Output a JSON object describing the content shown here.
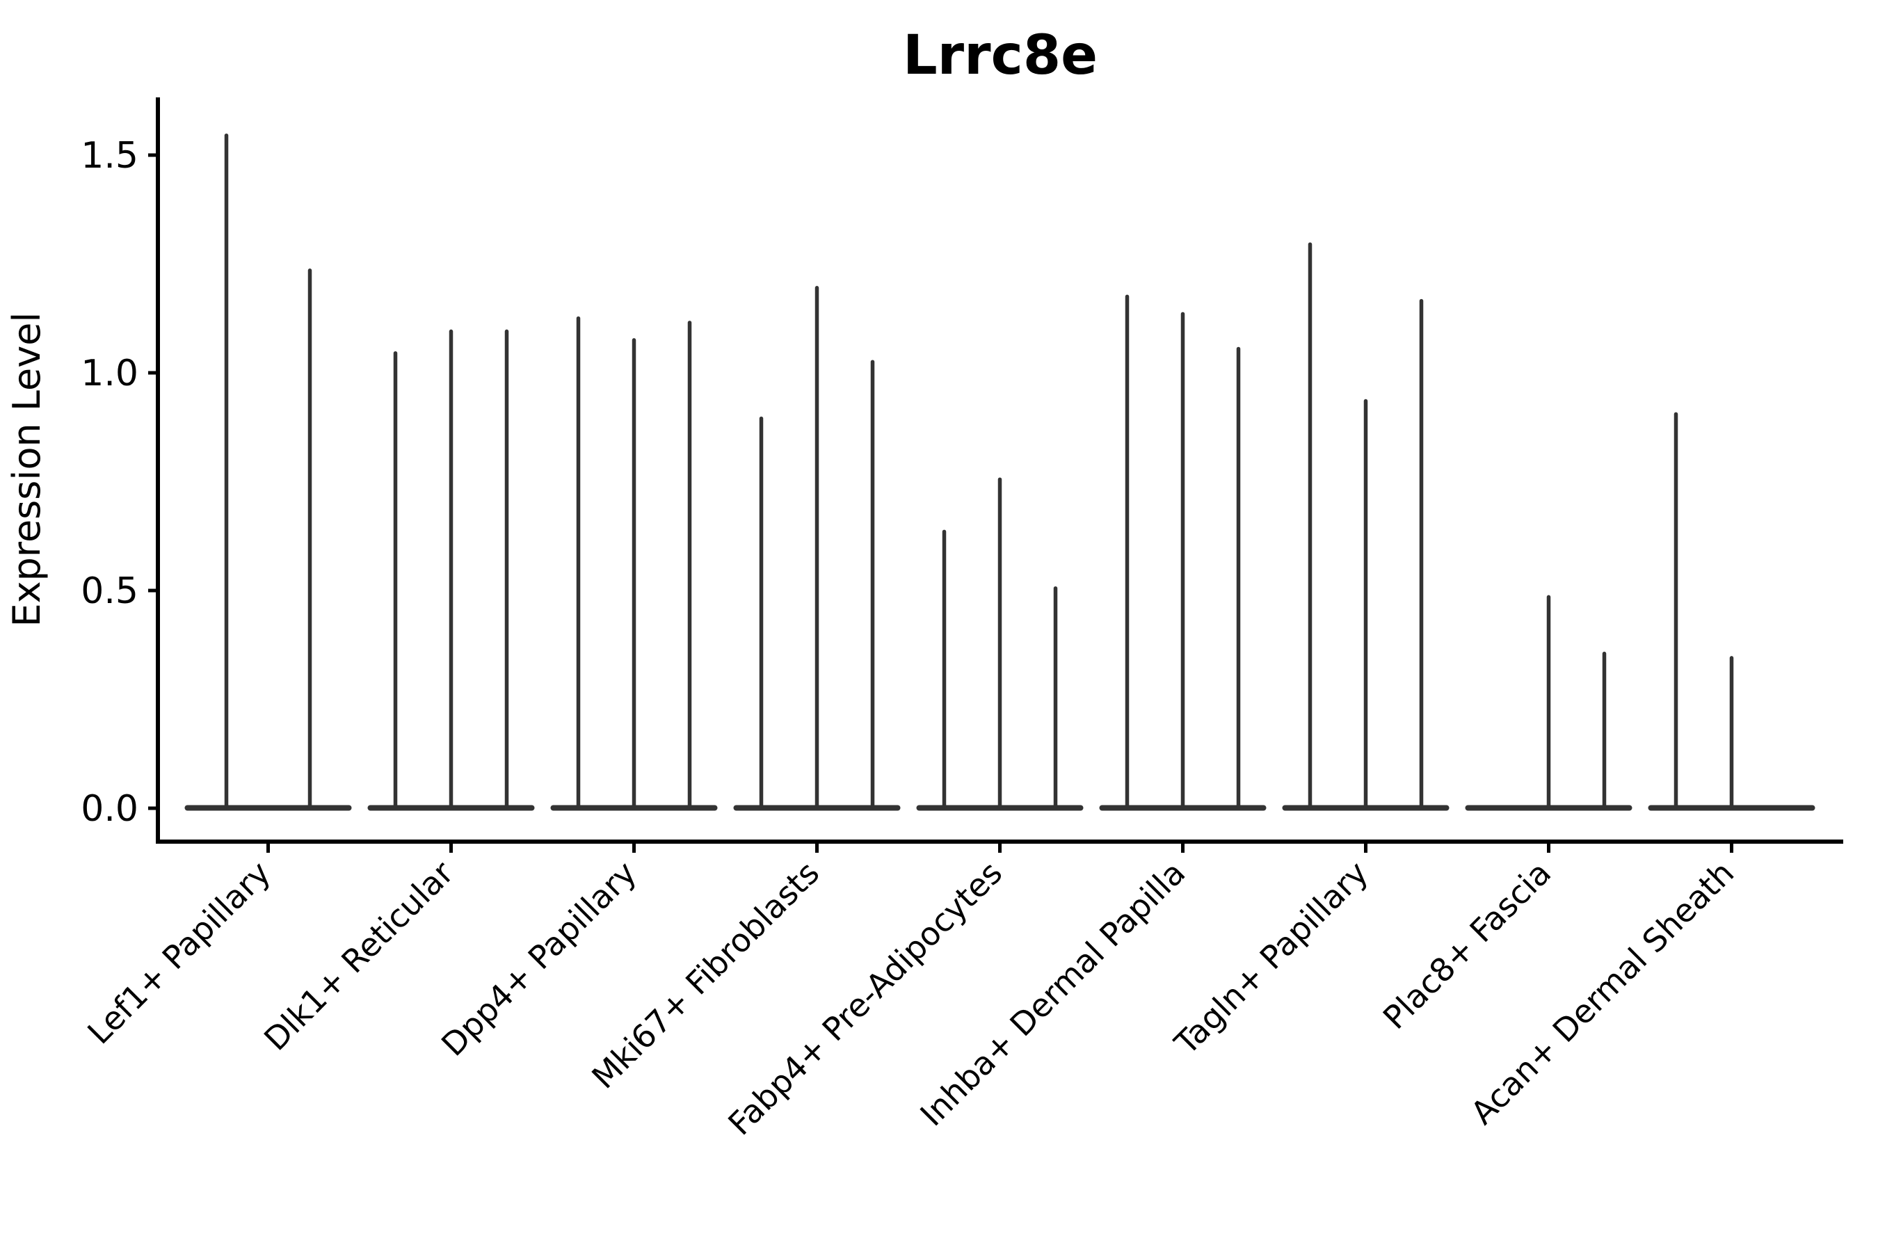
{
  "figure": {
    "background_color": "#ffffff",
    "text_color": "#000000",
    "violin_color": "#333333"
  },
  "chart_data": {
    "type": "violin",
    "title": "Lrrc8e",
    "xlabel": "",
    "ylabel": "Expression Level",
    "ylim": [
      -0.08,
      1.63
    ],
    "yticks": [
      0.0,
      0.5,
      1.0,
      1.5
    ],
    "ytick_labels": [
      "0.0",
      "0.5",
      "1.0",
      "1.5"
    ],
    "grid": false,
    "legend_position": "none",
    "x_label_rotation_deg": 45,
    "description": "Violin plot of Lrrc8e expression; each category holds 2-3 narrow violins whose density mass sits at 0 (wide flat base) with a thin spike rising to the maximum expression value. A maximum of 0 means a flat violin with no spike.",
    "categories": [
      "Lef1+ Papillary",
      "Dlk1+ Reticular",
      "Dpp4+ Papillary",
      "Mki67+ Fibroblasts",
      "Fabp4+ Pre-Adipocytes",
      "Inhba+ Dermal Papilla",
      "Tagln+ Papillary",
      "Plac8+ Fascia",
      "Acan+ Dermal Sheath"
    ],
    "violins": [
      {
        "category": "Lef1+ Papillary",
        "maxima": [
          1.55,
          1.24
        ]
      },
      {
        "category": "Dlk1+ Reticular",
        "maxima": [
          1.05,
          1.1,
          1.1
        ]
      },
      {
        "category": "Dpp4+ Papillary",
        "maxima": [
          1.13,
          1.08,
          1.12
        ]
      },
      {
        "category": "Mki67+ Fibroblasts",
        "maxima": [
          0.9,
          1.2,
          1.03
        ]
      },
      {
        "category": "Fabp4+ Pre-Adipocytes",
        "maxima": [
          0.64,
          0.76,
          0.51
        ]
      },
      {
        "category": "Inhba+ Dermal Papilla",
        "maxima": [
          1.18,
          1.14,
          1.06
        ]
      },
      {
        "category": "Tagln+ Papillary",
        "maxima": [
          1.3,
          0.94,
          1.17
        ]
      },
      {
        "category": "Plac8+ Fascia",
        "maxima": [
          0.0,
          0.49,
          0.36
        ]
      },
      {
        "category": "Acan+ Dermal Sheath",
        "maxima": [
          0.91,
          0.35,
          0.0
        ]
      }
    ]
  }
}
